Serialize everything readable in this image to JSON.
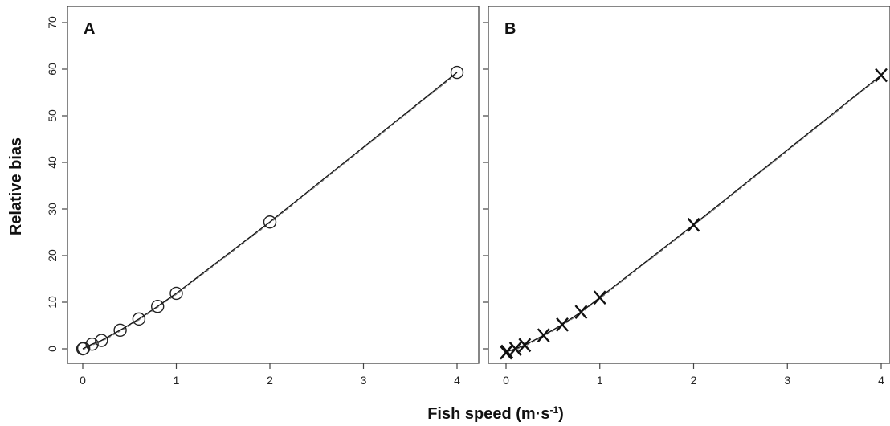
{
  "chart_data": [
    {
      "type": "scatter",
      "panel_label": "A",
      "marker": "circle",
      "xlim": [
        0,
        4
      ],
      "ylim": [
        0,
        70
      ],
      "x_ticks": [
        0,
        1,
        2,
        3,
        4
      ],
      "y_ticks": [
        0,
        10,
        20,
        30,
        40,
        50,
        60,
        70
      ],
      "points": [
        {
          "x": 0,
          "y": 0
        },
        {
          "x": 0.01,
          "y": 0.1
        },
        {
          "x": 0.1,
          "y": 1.0
        },
        {
          "x": 0.2,
          "y": 1.8
        },
        {
          "x": 0.4,
          "y": 4.0
        },
        {
          "x": 0.6,
          "y": 6.4
        },
        {
          "x": 0.8,
          "y": 9.1
        },
        {
          "x": 1.0,
          "y": 11.9
        },
        {
          "x": 2.0,
          "y": 27.2
        },
        {
          "x": 4.0,
          "y": 59.3
        }
      ],
      "fit_lines": [
        {
          "style": "solid",
          "color": "#111111"
        },
        {
          "style": "dashed",
          "color": "#777777"
        }
      ]
    },
    {
      "type": "scatter",
      "panel_label": "B",
      "marker": "x",
      "xlim": [
        0,
        4
      ],
      "ylim": [
        0,
        70
      ],
      "x_ticks": [
        0,
        1,
        2,
        3,
        4
      ],
      "y_ticks": [
        0,
        10,
        20,
        30,
        40,
        50,
        60,
        70
      ],
      "points": [
        {
          "x": 0,
          "y": -0.8
        },
        {
          "x": 0.01,
          "y": -0.6
        },
        {
          "x": 0.1,
          "y": 0.0
        },
        {
          "x": 0.2,
          "y": 0.8
        },
        {
          "x": 0.4,
          "y": 2.9
        },
        {
          "x": 0.6,
          "y": 5.2
        },
        {
          "x": 0.8,
          "y": 7.9
        },
        {
          "x": 1.0,
          "y": 11.0
        },
        {
          "x": 2.0,
          "y": 26.6
        },
        {
          "x": 4.0,
          "y": 58.7
        }
      ],
      "fit_lines": [
        {
          "style": "solid",
          "color": "#111111"
        },
        {
          "style": "dashed",
          "color": "#777777"
        }
      ]
    }
  ],
  "ylabel": "Relative bias",
  "xlabel": {
    "text": "Fish speed (m·s",
    "sup": "-1",
    "tail": ")"
  }
}
